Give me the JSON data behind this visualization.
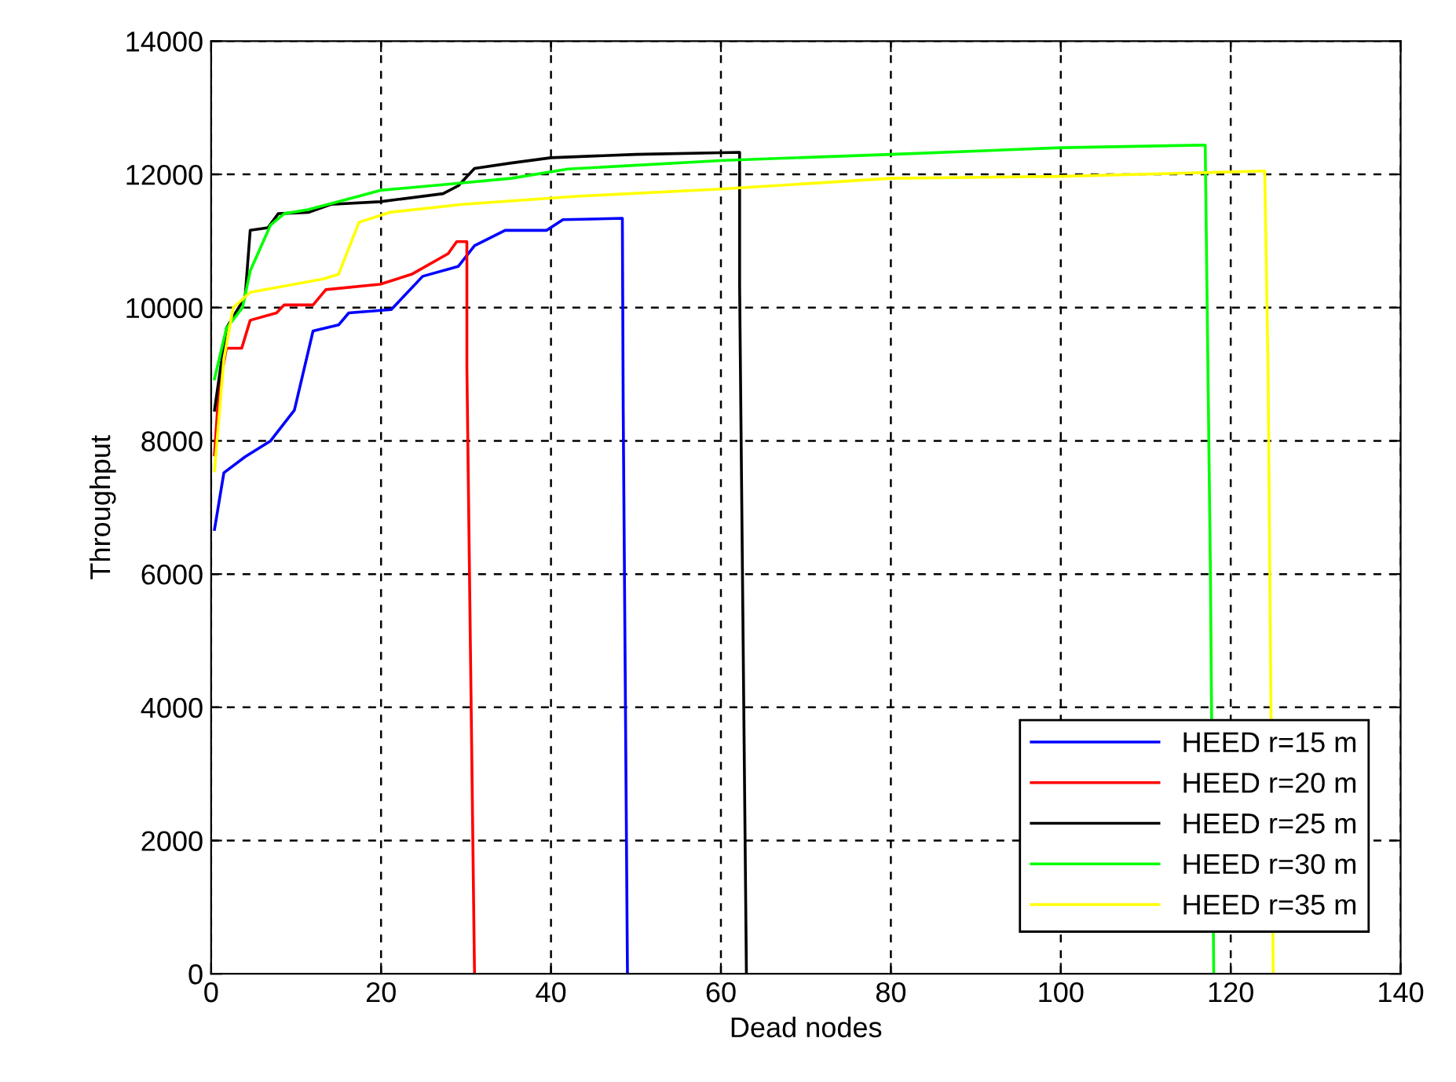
{
  "chart_data": {
    "type": "line",
    "xlabel": "Dead nodes",
    "ylabel": "Throughput",
    "xlim": [
      0,
      140
    ],
    "ylim": [
      0,
      14000
    ],
    "xticks": [
      0,
      20,
      40,
      60,
      80,
      100,
      120,
      140
    ],
    "yticks": [
      0,
      2000,
      4000,
      6000,
      8000,
      10000,
      12000,
      14000
    ],
    "grid": true,
    "legend": "bottom right",
    "line_style": "solid",
    "marker": "none",
    "series": [
      {
        "name": "HEED r=15 m",
        "color": "#0000ff",
        "x": [
          0.4,
          1.5,
          4,
          7,
          9.8,
          12,
          15,
          16.2,
          21.2,
          24.9,
          29.1,
          31,
          34.6,
          39.5,
          41.4,
          48.4,
          48.5,
          49
        ],
        "values": [
          6670,
          7520,
          7760,
          8000,
          8460,
          9650,
          9740,
          9920,
          9970,
          10470,
          10620,
          10930,
          11160,
          11160,
          11320,
          11340,
          8480,
          0
        ]
      },
      {
        "name": "HEED r=20 m",
        "color": "#ff0000",
        "x": [
          0.4,
          0.9,
          1.8,
          3.6,
          4.6,
          7.7,
          8.6,
          12,
          13.5,
          19.9,
          23.6,
          27.9,
          28.9,
          30.1,
          30.1,
          31
        ],
        "values": [
          7790,
          8760,
          9390,
          9390,
          9810,
          9920,
          10040,
          10040,
          10270,
          10350,
          10500,
          10810,
          10990,
          10990,
          9130,
          0
        ]
      },
      {
        "name": "HEED r=25 m",
        "color": "#000000",
        "x": [
          0.4,
          1.1,
          1.8,
          4,
          4.6,
          6.7,
          7.9,
          11.5,
          14.1,
          19.9,
          27.3,
          29.1,
          31,
          35.3,
          40,
          50,
          62.2,
          62.2,
          63
        ],
        "values": [
          8460,
          9090,
          9690,
          10160,
          11160,
          11200,
          11410,
          11430,
          11550,
          11590,
          11710,
          11830,
          12090,
          12170,
          12250,
          12300,
          12330,
          10320,
          0
        ]
      },
      {
        "name": "HEED r=30 m",
        "color": "#00ff00",
        "x": [
          0.4,
          1.8,
          3.7,
          4.6,
          7,
          8.6,
          11.4,
          15,
          19.9,
          28.5,
          35.3,
          42,
          60.4,
          80,
          100,
          117,
          117.2,
          117.6,
          118
        ],
        "values": [
          8930,
          9690,
          10000,
          10550,
          11240,
          11410,
          11470,
          11590,
          11760,
          11860,
          11940,
          12080,
          12210,
          12300,
          12400,
          12440,
          10300,
          6150,
          0
        ]
      },
      {
        "name": "HEED r=35 m",
        "color": "#ffff00",
        "x": [
          0.4,
          1.5,
          2.6,
          4.6,
          13.2,
          15,
          17.4,
          21,
          29.6,
          43,
          60,
          80,
          100,
          124,
          124.4,
          125
        ],
        "values": [
          7550,
          9230,
          10000,
          10230,
          10430,
          10500,
          11280,
          11430,
          11550,
          11670,
          11780,
          11940,
          11970,
          12050,
          9040,
          0
        ]
      }
    ]
  }
}
